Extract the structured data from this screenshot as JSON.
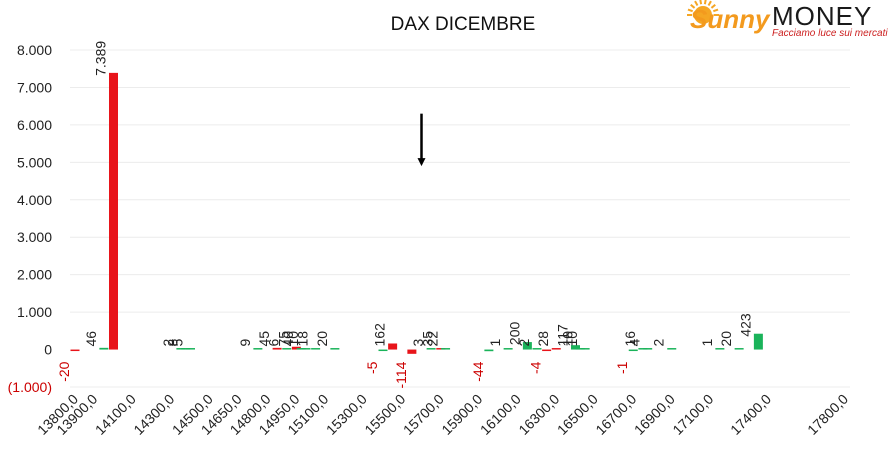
{
  "brand": {
    "name_script": "Sunny",
    "name": "MONEY",
    "tagline": "Facciamo luce sui mercati",
    "sun_color": "#f5a623",
    "script_color": "#f39a1e",
    "tagline_color": "#cc1f1f"
  },
  "chart_data": {
    "type": "bar",
    "title": "DAX DICEMBRE",
    "xlabel": "",
    "ylabel": "",
    "ylim": [
      -1000,
      8000
    ],
    "yticks": [
      {
        "value": 8000,
        "label": "8.000"
      },
      {
        "value": 7000,
        "label": "7.000"
      },
      {
        "value": 6000,
        "label": "6.000"
      },
      {
        "value": 5000,
        "label": "5.000"
      },
      {
        "value": 4000,
        "label": "4.000"
      },
      {
        "value": 3000,
        "label": "3.000"
      },
      {
        "value": 2000,
        "label": "2.000"
      },
      {
        "value": 1000,
        "label": "1.000"
      },
      {
        "value": 0,
        "label": "0"
      },
      {
        "value": -1000,
        "label": "(1.000)"
      }
    ],
    "categories": [
      13800,
      13850,
      13900,
      13950,
      14000,
      14050,
      14100,
      14150,
      14200,
      14250,
      14300,
      14350,
      14400,
      14450,
      14500,
      14550,
      14600,
      14650,
      14700,
      14750,
      14800,
      14850,
      14900,
      14950,
      15000,
      15050,
      15100,
      15150,
      15200,
      15250,
      15300,
      15350,
      15400,
      15450,
      15500,
      15550,
      15600,
      15650,
      15700,
      15750,
      15800,
      15850,
      15900,
      15950,
      16000,
      16050,
      16100,
      16150,
      16200,
      16250,
      16300,
      16350,
      16400,
      16450,
      16500,
      16550,
      16600,
      16650,
      16700,
      16750,
      16800,
      16850,
      16900,
      16950,
      17000,
      17050,
      17100,
      17150,
      17200,
      17250,
      17300,
      17350,
      17400,
      17450,
      17500,
      17550,
      17600,
      17650,
      17700,
      17750,
      17800
    ],
    "xtick_labels": [
      {
        "category": 13800,
        "label": "13800,0"
      },
      {
        "category": 13900,
        "label": "13900,0"
      },
      {
        "category": 14100,
        "label": "14100,0"
      },
      {
        "category": 14300,
        "label": "14300,0"
      },
      {
        "category": 14500,
        "label": "14500,0"
      },
      {
        "category": 14650,
        "label": "14650,0"
      },
      {
        "category": 14800,
        "label": "14800,0"
      },
      {
        "category": 14950,
        "label": "14950,0"
      },
      {
        "category": 15100,
        "label": "15100,0"
      },
      {
        "category": 15300,
        "label": "15300,0"
      },
      {
        "category": 15500,
        "label": "15500,0"
      },
      {
        "category": 15700,
        "label": "15700,0"
      },
      {
        "category": 15900,
        "label": "15900,0"
      },
      {
        "category": 16100,
        "label": "16100,0"
      },
      {
        "category": 16300,
        "label": "16300,0"
      },
      {
        "category": 16500,
        "label": "16500,0"
      },
      {
        "category": 16700,
        "label": "16700,0"
      },
      {
        "category": 16900,
        "label": "16900,0"
      },
      {
        "category": 17100,
        "label": "17100,0"
      },
      {
        "category": 17400,
        "label": "17400,0"
      },
      {
        "category": 17800,
        "label": "17800,0"
      }
    ],
    "bars": [
      {
        "x": 13800,
        "value": -20,
        "label": "-20",
        "color": "#e8141a"
      },
      {
        "x": 13950,
        "value": 46,
        "label": "46",
        "color": "#1ab35a"
      },
      {
        "x": 14000,
        "value": 7389,
        "label": "7.389",
        "color": "#e8141a"
      },
      {
        "x": 14350,
        "value": 2,
        "label": "2",
        "color": "#1ab35a"
      },
      {
        "x": 14375,
        "value": 8,
        "label": "8",
        "color": "#1ab35a"
      },
      {
        "x": 14400,
        "value": 5,
        "label": "5",
        "color": "#1ab35a"
      },
      {
        "x": 14750,
        "value": 9,
        "label": "9",
        "color": "#1ab35a"
      },
      {
        "x": 14850,
        "value": 45,
        "label": "45",
        "color": "#e8141a"
      },
      {
        "x": 14900,
        "value": 6,
        "label": "6",
        "color": "#1ab35a"
      },
      {
        "x": 14950,
        "value": 75,
        "label": "75",
        "color": "#e8141a"
      },
      {
        "x": 14975,
        "value": 40,
        "label": "40",
        "color": "#1ab35a"
      },
      {
        "x": 15000,
        "value": 10,
        "label": "10",
        "color": "#1ab35a"
      },
      {
        "x": 15050,
        "value": 18,
        "label": "18",
        "color": "#1ab35a"
      },
      {
        "x": 15150,
        "value": 20,
        "label": "20",
        "color": "#1ab35a"
      },
      {
        "x": 15400,
        "value": -5,
        "label": "-5",
        "color": "#1ab35a"
      },
      {
        "x": 15450,
        "value": 162,
        "label": "162",
        "color": "#e8141a"
      },
      {
        "x": 15550,
        "value": -114,
        "label": "-114",
        "color": "#e8141a"
      },
      {
        "x": 15650,
        "value": 3,
        "label": "3",
        "color": "#1ab35a"
      },
      {
        "x": 15700,
        "value": 35,
        "label": "35",
        "color": "#e8141a"
      },
      {
        "x": 15725,
        "value": 22,
        "label": "22",
        "color": "#1ab35a"
      },
      {
        "x": 15950,
        "value": -44,
        "label": "-44",
        "color": "#1ab35a"
      },
      {
        "x": 16050,
        "value": 1,
        "label": "1",
        "color": "#1ab35a"
      },
      {
        "x": 16150,
        "value": 200,
        "label": "200",
        "color": "#1ab35a"
      },
      {
        "x": 16200,
        "value": 2,
        "label": "2",
        "color": "#1ab35a"
      },
      {
        "x": 16250,
        "value": -4,
        "label": "-4",
        "color": "#e8141a"
      },
      {
        "x": 16300,
        "value": 28,
        "label": "28",
        "color": "#e8141a"
      },
      {
        "x": 16400,
        "value": 117,
        "label": "117",
        "color": "#1ab35a"
      },
      {
        "x": 16425,
        "value": 10,
        "label": "10",
        "color": "#1ab35a"
      },
      {
        "x": 16450,
        "value": 10,
        "label": "10",
        "color": "#1ab35a"
      },
      {
        "x": 16700,
        "value": -1,
        "label": "-1",
        "color": "#1ab35a"
      },
      {
        "x": 16750,
        "value": 16,
        "label": "16",
        "color": "#1ab35a"
      },
      {
        "x": 16775,
        "value": 4,
        "label": "4",
        "color": "#1ab35a"
      },
      {
        "x": 16900,
        "value": 2,
        "label": "2",
        "color": "#1ab35a"
      },
      {
        "x": 17150,
        "value": 1,
        "label": "1",
        "color": "#1ab35a"
      },
      {
        "x": 17250,
        "value": 20,
        "label": "20",
        "color": "#1ab35a"
      },
      {
        "x": 17350,
        "value": 423,
        "label": "423",
        "color": "#1ab35a"
      }
    ],
    "annotation": {
      "type": "arrow-down",
      "x": 15600,
      "from": 6300,
      "to": 4900
    },
    "grid": true,
    "legend": "none"
  }
}
